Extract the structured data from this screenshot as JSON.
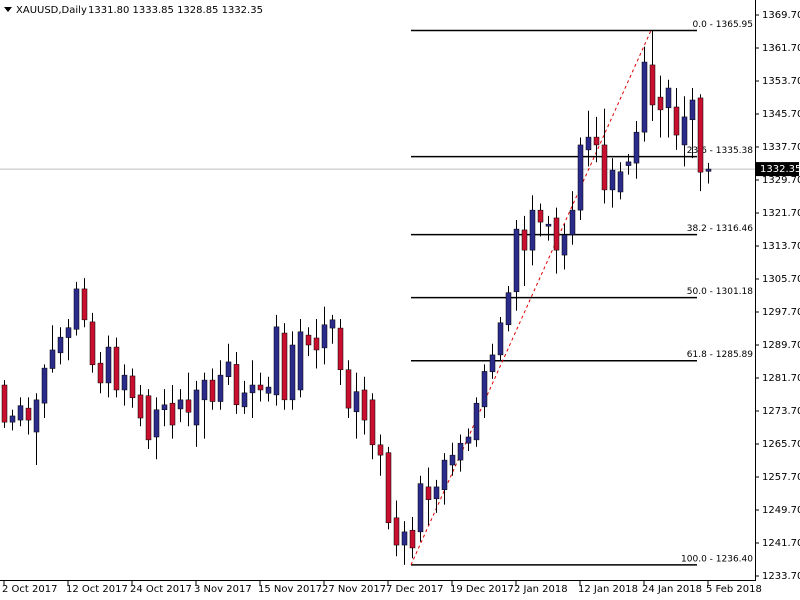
{
  "chart_data": {
    "type": "candlestick",
    "symbol": "XAUUSD,Daily",
    "header_ohlc": "1331.80 1333.85 1328.85 1332.35",
    "up_color": "#2b2b8c",
    "down_color": "#c8102e",
    "categories": [
      "2 Oct 2017",
      null,
      null,
      null,
      null,
      null,
      null,
      null,
      "12 Oct 2017",
      null,
      null,
      null,
      null,
      null,
      null,
      null,
      "24 Oct 2017",
      null,
      null,
      null,
      null,
      null,
      null,
      null,
      "3 Nov 2017",
      null,
      null,
      null,
      null,
      null,
      null,
      null,
      "15 Nov 2017",
      null,
      null,
      null,
      null,
      null,
      null,
      null,
      "27 Nov 2017",
      null,
      null,
      null,
      null,
      null,
      null,
      null,
      "7 Dec 2017",
      null,
      null,
      null,
      null,
      null,
      null,
      null,
      "19 Dec 2017",
      null,
      null,
      null,
      null,
      null,
      null,
      null,
      "2 Jan 2018",
      null,
      null,
      null,
      null,
      null,
      null,
      null,
      "12 Jan 2018",
      null,
      null,
      null,
      null,
      null,
      null,
      null,
      "24 Jan 2018",
      null,
      null,
      null,
      null,
      null,
      null,
      null,
      "5 Feb 2018"
    ],
    "open": [
      1280,
      1271,
      1271.5,
      1274.4,
      1268.6,
      1275.6,
      1284,
      1287.8,
      1291.5,
      1293.5,
      1303.3,
      1295.3,
      1285.3,
      1280.5,
      1289.2,
      1278.8,
      1282.2,
      1277.6,
      1277.4,
      1267.4,
      1274,
      1275.6,
      1274.2,
      1276.4,
      1270.3,
      1276.4,
      1281.2,
      1276,
      1282,
      1285,
      1274.7,
      1278.1,
      1280,
      1278,
      1277.6,
      1292.6,
      1276.4,
      1278.8,
      1292.1,
      1291.4,
      1289,
      1293.8,
      1293.8,
      1283.7,
      1273.5,
      1278.8,
      1276.4,
      1265.5,
      1263.6,
      1247.8,
      1241.2,
      1244.8,
      1244.4,
      1255.3,
      1252.4,
      1254.6,
      1260.6,
      1261.8,
      1265.9,
      1266.7,
      1274.7,
      1283.2,
      1287.3,
      1294.6,
      1302.6,
      1317.6,
      1312.7,
      1322.4,
      1318.5,
      1320.5,
      1311.5,
      1316.4,
      1322.4,
      1337,
      1340.1,
      1338.2,
      1327.3,
      1326.8,
      1333.2,
      1333.8,
      1341.3,
      1357.6,
      1349.8,
      1347.2,
      1347.4,
      1338.2,
      1344.3,
      1349.6,
      1331.8
    ],
    "high": [
      1281.2,
      1274,
      1277,
      1277,
      1278,
      1285,
      1294.5,
      1294,
      1296,
      1305,
      1305.9,
      1297.5,
      1288,
      1292,
      1291.5,
      1285,
      1284,
      1280,
      1279,
      1277,
      1279,
      1280,
      1279,
      1283,
      1281,
      1283,
      1284,
      1286,
      1290,
      1288,
      1281,
      1286,
      1283,
      1282,
      1297,
      1295,
      1293,
      1296,
      1294,
      1296,
      1299,
      1297,
      1296,
      1286,
      1283,
      1282,
      1278,
      1268,
      1265,
      1252,
      1247,
      1248,
      1258,
      1260,
      1257,
      1263.5,
      1266,
      1268,
      1269.5,
      1277,
      1285,
      1290,
      1296.5,
      1304,
      1320,
      1321,
      1326,
      1324,
      1321,
      1323,
      1319,
      1327,
      1340,
      1346.5,
      1345,
      1347,
      1335,
      1334,
      1336,
      1344,
      1362,
      1365.95,
      1355,
      1354,
      1352,
      1350,
      1352,
      1350.5,
      1333.85
    ],
    "low": [
      1269.6,
      1269,
      1270,
      1268,
      1260.6,
      1272,
      1283,
      1285,
      1286,
      1292,
      1294,
      1283,
      1278,
      1277,
      1277,
      1275,
      1274.5,
      1270,
      1264.5,
      1262,
      1270,
      1267,
      1271,
      1270,
      1265,
      1267,
      1274,
      1274,
      1280,
      1273,
      1273,
      1272,
      1276,
      1276,
      1275,
      1274,
      1274,
      1277,
      1287,
      1284,
      1285,
      1290,
      1280,
      1272,
      1267,
      1268,
      1262,
      1258,
      1245,
      1238.5,
      1236.4,
      1238,
      1242,
      1246,
      1249,
      1251,
      1258,
      1259,
      1264,
      1265,
      1272,
      1281.5,
      1286,
      1293,
      1298,
      1304,
      1309,
      1316,
      1315,
      1307,
      1308,
      1314,
      1320,
      1333,
      1334,
      1324,
      1323,
      1325,
      1331,
      1330,
      1339,
      1344,
      1340,
      1340,
      1337,
      1333,
      1335,
      1327,
      1328.85
    ],
    "close": [
      1271,
      1272.5,
      1275,
      1271.5,
      1276.4,
      1284.1,
      1288.5,
      1291.6,
      1293.9,
      1303.3,
      1295.8,
      1284.9,
      1280.5,
      1289.2,
      1278.8,
      1282.4,
      1276.9,
      1272,
      1266.7,
      1274,
      1275.2,
      1270.3,
      1276.4,
      1273.4,
      1278.8,
      1281.2,
      1276,
      1282.4,
      1285.6,
      1275.2,
      1278.1,
      1280,
      1278.8,
      1279.5,
      1294.1,
      1276.4,
      1289.7,
      1292.9,
      1289.7,
      1288.5,
      1294.6,
      1295.8,
      1283.7,
      1274.4,
      1278.4,
      1271.5,
      1265.5,
      1263,
      1246.6,
      1241.2,
      1244.4,
      1240.5,
      1256.1,
      1252.2,
      1255.3,
      1261.8,
      1263,
      1265.9,
      1267.4,
      1275.6,
      1283.3,
      1287.3,
      1295.1,
      1302.4,
      1317.8,
      1312.7,
      1322.4,
      1319.5,
      1319,
      1312.7,
      1316.4,
      1322.4,
      1338.2,
      1340.1,
      1338.2,
      1327.3,
      1332.1,
      1331.7,
      1334.1,
      1341.3,
      1358.3,
      1347.9,
      1346.7,
      1352,
      1340.6,
      1345,
      1349.1,
      1331.6,
      1332.35
    ],
    "ylim": [
      1232.73,
      1373.34
    ],
    "yticks": [
      {
        "value": 1233.7,
        "label": "1233.70"
      },
      {
        "value": 1241.7,
        "label": "1241.70"
      },
      {
        "value": 1249.7,
        "label": "1249.70"
      },
      {
        "value": 1257.7,
        "label": "1257.70"
      },
      {
        "value": 1265.7,
        "label": "1265.70"
      },
      {
        "value": 1273.7,
        "label": "1273.70"
      },
      {
        "value": 1281.7,
        "label": "1281.70"
      },
      {
        "value": 1289.7,
        "label": "1289.70"
      },
      {
        "value": 1297.7,
        "label": "1297.70"
      },
      {
        "value": 1305.7,
        "label": "1305.70"
      },
      {
        "value": 1313.7,
        "label": "1313.70"
      },
      {
        "value": 1321.7,
        "label": "1321.70"
      },
      {
        "value": 1329.7,
        "label": "1329.70"
      },
      {
        "value": 1337.7,
        "label": "1337.70"
      },
      {
        "value": 1345.7,
        "label": "1345.70"
      },
      {
        "value": 1353.7,
        "label": "1353.70"
      },
      {
        "value": 1361.7,
        "label": "1361.70"
      },
      {
        "value": 1369.7,
        "label": "1369.70"
      }
    ],
    "fib_levels": [
      {
        "label": "0.0 - 1365.95",
        "value": 1365.95
      },
      {
        "label": "23.6 - 1335.38",
        "value": 1335.38
      },
      {
        "label": "38.2 - 1316.46",
        "value": 1316.46
      },
      {
        "label": "50.0 - 1301.18",
        "value": 1301.18
      },
      {
        "label": "61.8 - 1285.89",
        "value": 1285.89
      },
      {
        "label": "100.0 - 1236.40",
        "value": 1236.4
      }
    ],
    "last_price": 1332.35,
    "grid": false
  }
}
